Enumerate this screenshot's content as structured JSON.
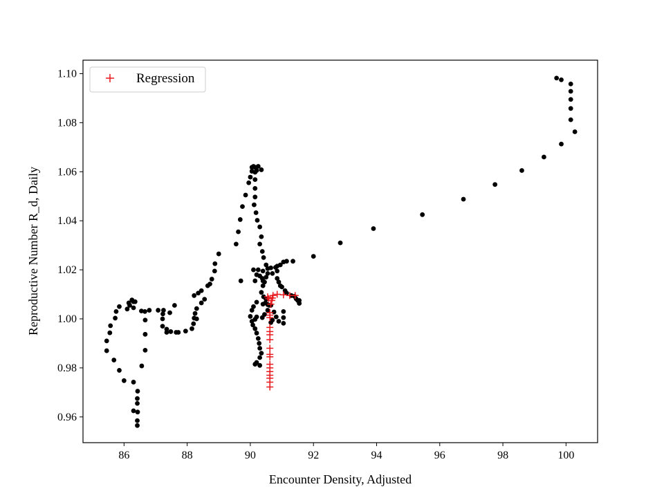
{
  "chart_data": {
    "type": "scatter",
    "title": "",
    "xlabel": "Encounter Density, Adjusted",
    "ylabel": "Reproductive Number R_d, Daily",
    "xlim": [
      84.7,
      101.0
    ],
    "ylim": [
      0.9495,
      1.1055
    ],
    "xticks": [
      86,
      88,
      90,
      92,
      94,
      96,
      98,
      100
    ],
    "yticks": [
      0.96,
      0.98,
      1.0,
      1.02,
      1.04,
      1.06,
      1.08,
      1.1
    ],
    "xtick_labels": [
      "86",
      "88",
      "90",
      "92",
      "94",
      "96",
      "98",
      "100"
    ],
    "ytick_labels": [
      "0.96",
      "0.98",
      "1.00",
      "1.02",
      "1.04",
      "1.06",
      "1.08",
      "1.10"
    ],
    "grid": false,
    "legend": {
      "position": "upper-left",
      "entries": [
        "Regression"
      ]
    },
    "series": [
      {
        "marker": "dot",
        "color": "#000000",
        "points": [
          [
            86.42,
            0.9565
          ],
          [
            86.42,
            0.9585
          ],
          [
            86.43,
            0.962
          ],
          [
            86.3,
            0.9625
          ],
          [
            86.42,
            0.9655
          ],
          [
            86.42,
            0.9675
          ],
          [
            86.43,
            0.9705
          ],
          [
            86.3,
            0.9742
          ],
          [
            86.0,
            0.9748
          ],
          [
            85.85,
            0.979
          ],
          [
            85.68,
            0.9832
          ],
          [
            86.56,
            0.9808
          ],
          [
            86.67,
            0.9872
          ],
          [
            86.67,
            0.9937
          ],
          [
            85.45,
            0.987
          ],
          [
            85.45,
            0.991
          ],
          [
            85.55,
            0.9943
          ],
          [
            85.57,
            0.9972
          ],
          [
            85.72,
            1.0003
          ],
          [
            85.75,
            1.003
          ],
          [
            85.85,
            1.005
          ],
          [
            86.1,
            1.004
          ],
          [
            86.15,
            1.0065
          ],
          [
            86.3,
            1.007
          ],
          [
            86.25,
            1.0077
          ],
          [
            86.18,
            1.0055
          ],
          [
            86.3,
            1.0045
          ],
          [
            86.35,
            1.007
          ],
          [
            86.55,
            1.0032
          ],
          [
            86.66,
            1.003
          ],
          [
            86.8,
            1.0035
          ],
          [
            86.67,
            0.9995
          ],
          [
            87.08,
            1.0035
          ],
          [
            87.23,
            1.002
          ],
          [
            87.25,
            1.0035
          ],
          [
            87.22,
            1.0
          ],
          [
            87.22,
            0.997
          ],
          [
            87.35,
            0.9958
          ],
          [
            87.35,
            0.9945
          ],
          [
            87.48,
            0.9948
          ],
          [
            87.6,
            1.0055
          ],
          [
            87.45,
            1.0025
          ],
          [
            87.65,
            0.9945
          ],
          [
            87.72,
            0.9945
          ],
          [
            87.95,
            0.995
          ],
          [
            88.15,
            0.996
          ],
          [
            88.2,
            0.998
          ],
          [
            88.25,
            1.0022
          ],
          [
            88.22,
            1.0003
          ],
          [
            88.3,
            1.0
          ],
          [
            88.3,
            1.0042
          ],
          [
            88.22,
            1.0095
          ],
          [
            88.35,
            1.0105
          ],
          [
            88.45,
            1.0115
          ],
          [
            88.45,
            1.0065
          ],
          [
            88.55,
            1.008
          ],
          [
            88.65,
            1.0135
          ],
          [
            88.72,
            1.0142
          ],
          [
            88.78,
            1.0162
          ],
          [
            88.87,
            1.0195
          ],
          [
            88.88,
            1.0225
          ],
          [
            89.0,
            1.0265
          ],
          [
            89.55,
            1.0305
          ],
          [
            89.62,
            1.0355
          ],
          [
            89.68,
            1.0405
          ],
          [
            89.75,
            1.0458
          ],
          [
            89.85,
            1.0505
          ],
          [
            89.95,
            1.0555
          ],
          [
            90.0,
            1.0578
          ],
          [
            90.05,
            1.0602
          ],
          [
            90.05,
            1.0618
          ],
          [
            90.1,
            1.0622
          ],
          [
            90.15,
            1.0618
          ],
          [
            90.2,
            1.0605
          ],
          [
            90.25,
            1.0622
          ],
          [
            90.35,
            1.0608
          ],
          [
            90.15,
            1.0598
          ],
          [
            90.15,
            1.0568
          ],
          [
            90.15,
            1.0532
          ],
          [
            90.15,
            1.0497
          ],
          [
            90.12,
            1.0465
          ],
          [
            90.18,
            1.0433
          ],
          [
            90.22,
            1.0402
          ],
          [
            90.3,
            1.0375
          ],
          [
            90.35,
            1.0335
          ],
          [
            90.3,
            1.0305
          ],
          [
            90.38,
            1.0275
          ],
          [
            90.42,
            1.025
          ],
          [
            90.5,
            1.022
          ],
          [
            90.55,
            1.0205
          ],
          [
            90.65,
            1.0208
          ],
          [
            90.8,
            1.021
          ],
          [
            90.85,
            1.0215
          ],
          [
            90.95,
            1.022
          ],
          [
            91.05,
            1.0232
          ],
          [
            91.15,
            1.0235
          ],
          [
            91.35,
            1.0235
          ],
          [
            90.4,
            1.0195
          ],
          [
            90.25,
            1.02
          ],
          [
            90.3,
            1.0175
          ],
          [
            90.38,
            1.0165
          ],
          [
            90.45,
            1.015
          ],
          [
            90.4,
            1.0135
          ],
          [
            90.35,
            1.0108
          ],
          [
            90.42,
            1.009
          ],
          [
            90.48,
            1.0065
          ],
          [
            90.4,
            1.006
          ],
          [
            90.55,
            1.0058
          ],
          [
            90.6,
            1.0055
          ],
          [
            90.55,
            1.0035
          ],
          [
            90.45,
            1.0018
          ],
          [
            90.38,
            1.0005
          ],
          [
            90.2,
            1.0008
          ],
          [
            90.15,
            0.9998
          ],
          [
            90.0,
            1.001
          ],
          [
            90.05,
            0.999
          ],
          [
            90.08,
            0.9975
          ],
          [
            90.15,
            0.996
          ],
          [
            90.2,
            0.9942
          ],
          [
            90.25,
            0.992
          ],
          [
            90.28,
            0.99
          ],
          [
            90.3,
            0.988
          ],
          [
            90.35,
            0.986
          ],
          [
            90.3,
            0.9842
          ],
          [
            90.2,
            0.9822
          ],
          [
            90.15,
            0.9815
          ],
          [
            90.3,
            0.981
          ],
          [
            90.05,
            1.0035
          ],
          [
            90.1,
            1.005
          ],
          [
            90.2,
            1.0068
          ],
          [
            90.4,
            1.0155
          ],
          [
            90.5,
            1.017
          ],
          [
            90.55,
            1.0185
          ],
          [
            90.7,
            1.0185
          ],
          [
            90.85,
            1.0195
          ],
          [
            90.85,
            1.0165
          ],
          [
            90.9,
            1.015
          ],
          [
            90.95,
            1.0135
          ],
          [
            91.0,
            1.013
          ],
          [
            91.1,
            1.0115
          ],
          [
            91.15,
            1.0105
          ],
          [
            91.3,
            1.0095
          ],
          [
            91.4,
            1.0092
          ],
          [
            91.45,
            1.0082
          ],
          [
            91.5,
            1.0075
          ],
          [
            91.55,
            1.0063
          ],
          [
            91.55,
            1.0075
          ],
          [
            89.7,
            1.0155
          ],
          [
            90.1,
            1.02
          ],
          [
            90.2,
            1.018
          ],
          [
            90.15,
            1.0155
          ],
          [
            90.5,
            1.008
          ],
          [
            90.65,
            1.0055
          ],
          [
            90.75,
            1.0028
          ],
          [
            90.82,
            1.0008
          ],
          [
            90.7,
            0.9995
          ],
          [
            91.05,
            1.003
          ],
          [
            91.05,
            1.0005
          ],
          [
            91.05,
            0.9982
          ],
          [
            90.9,
            0.999
          ],
          [
            90.65,
            0.9985
          ],
          [
            92.0,
            1.0255
          ],
          [
            92.85,
            1.031
          ],
          [
            93.9,
            1.0368
          ],
          [
            95.45,
            1.0425
          ],
          [
            96.75,
            1.0488
          ],
          [
            97.75,
            1.0548
          ],
          [
            98.6,
            1.0605
          ],
          [
            99.3,
            1.066
          ],
          [
            99.85,
            1.0713
          ],
          [
            100.28,
            1.0763
          ],
          [
            100.15,
            1.0812
          ],
          [
            100.15,
            1.0858
          ],
          [
            100.15,
            1.0895
          ],
          [
            100.15,
            1.0928
          ],
          [
            100.15,
            1.0958
          ],
          [
            99.85,
            1.0975
          ],
          [
            99.7,
            1.0982
          ]
        ]
      },
      {
        "name": "Regression",
        "marker": "plus",
        "color": "#e8181c",
        "points": [
          [
            90.62,
            0.9722
          ],
          [
            90.62,
            0.9742
          ],
          [
            90.62,
            0.9758
          ],
          [
            90.62,
            0.977
          ],
          [
            90.62,
            0.9785
          ],
          [
            90.62,
            0.98
          ],
          [
            90.62,
            0.9815
          ],
          [
            90.62,
            0.9845
          ],
          [
            90.62,
            0.9855
          ],
          [
            90.62,
            0.988
          ],
          [
            90.62,
            0.9915
          ],
          [
            90.62,
            0.9935
          ],
          [
            90.62,
            0.9948
          ],
          [
            90.62,
            0.9965
          ],
          [
            90.62,
            1.0005
          ],
          [
            90.62,
            1.0015
          ],
          [
            90.62,
            1.0025
          ],
          [
            90.65,
            1.006
          ],
          [
            90.68,
            1.0075
          ],
          [
            90.7,
            1.0085
          ],
          [
            90.72,
            1.0095
          ],
          [
            90.85,
            1.01
          ],
          [
            91.05,
            1.0098
          ],
          [
            91.25,
            1.0095
          ],
          [
            91.42,
            1.0095
          ],
          [
            90.55,
            1.009
          ],
          [
            90.58,
            1.0082
          ]
        ]
      }
    ]
  }
}
